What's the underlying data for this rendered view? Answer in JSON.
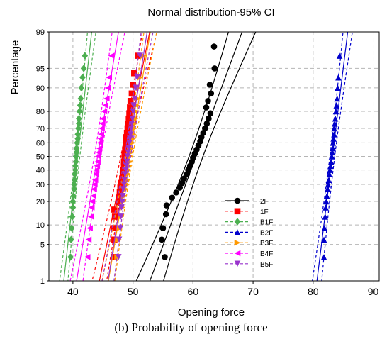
{
  "chart_data": {
    "type": "scatter",
    "title": "Normal distribution-95% CI",
    "xlabel": "Opening force",
    "ylabel": "Percentage",
    "y_scale": "normal-probability",
    "xlim": [
      36,
      91
    ],
    "x_ticks": [
      "40",
      "50",
      "60",
      "70",
      "80",
      "90"
    ],
    "x_tick_values": [
      40,
      50,
      60,
      70,
      80,
      90
    ],
    "y_ticks": [
      "1",
      "5",
      "10",
      "20",
      "30",
      "40",
      "50",
      "60",
      "70",
      "80",
      "90",
      "95",
      "99"
    ],
    "y_tick_values": [
      1,
      5,
      10,
      20,
      30,
      40,
      50,
      60,
      70,
      80,
      90,
      95,
      99
    ],
    "grid": true,
    "legend_position": "lower-middle",
    "series": [
      {
        "name": "2F",
        "color": "#000000",
        "marker": "circle",
        "fit": {
          "mean": 60.5,
          "sd": 3.3
        },
        "points": [
          [
            55.3,
            3
          ],
          [
            54.8,
            6
          ],
          [
            55.0,
            9
          ],
          [
            55.5,
            14
          ],
          [
            55.6,
            18
          ],
          [
            56.5,
            22
          ],
          [
            57.2,
            25
          ],
          [
            57.8,
            28
          ],
          [
            58.2,
            31
          ],
          [
            58.5,
            34
          ],
          [
            59.0,
            37
          ],
          [
            59.2,
            40
          ],
          [
            59.5,
            43
          ],
          [
            59.8,
            46
          ],
          [
            60.0,
            49
          ],
          [
            60.3,
            52
          ],
          [
            60.6,
            55
          ],
          [
            60.9,
            58
          ],
          [
            61.2,
            61
          ],
          [
            61.4,
            64
          ],
          [
            61.7,
            67
          ],
          [
            62.0,
            70
          ],
          [
            62.3,
            73
          ],
          [
            62.6,
            76
          ],
          [
            62.9,
            79
          ],
          [
            62.2,
            82
          ],
          [
            62.5,
            85
          ],
          [
            63.0,
            88
          ],
          [
            62.8,
            91
          ],
          [
            63.6,
            95
          ],
          [
            63.5,
            98
          ]
        ]
      },
      {
        "name": "1F",
        "color": "#ff0000",
        "marker": "square",
        "fit": {
          "mean": 48.6,
          "sd": 1.8
        },
        "points": [
          [
            46.8,
            3
          ],
          [
            46.9,
            6
          ],
          [
            46.8,
            9
          ],
          [
            47.0,
            13
          ],
          [
            46.9,
            16
          ],
          [
            47.6,
            19
          ],
          [
            47.7,
            22
          ],
          [
            47.8,
            25
          ],
          [
            47.9,
            28
          ],
          [
            48.0,
            31
          ],
          [
            48.2,
            34
          ],
          [
            48.3,
            37
          ],
          [
            48.4,
            40
          ],
          [
            48.5,
            43
          ],
          [
            48.5,
            46
          ],
          [
            48.6,
            49
          ],
          [
            48.6,
            52
          ],
          [
            48.7,
            55
          ],
          [
            48.8,
            58
          ],
          [
            48.9,
            61
          ],
          [
            48.9,
            64
          ],
          [
            49.0,
            67
          ],
          [
            49.1,
            70
          ],
          [
            49.2,
            73
          ],
          [
            49.3,
            76
          ],
          [
            49.4,
            79
          ],
          [
            49.5,
            82
          ],
          [
            49.6,
            85
          ],
          [
            49.8,
            88
          ],
          [
            50.0,
            91
          ],
          [
            50.2,
            94
          ],
          [
            50.8,
            97
          ]
        ]
      },
      {
        "name": "B1F",
        "color": "#4caf50",
        "marker": "diamond",
        "fit": {
          "mean": 40.8,
          "sd": 1.0
        },
        "points": [
          [
            39.6,
            3
          ],
          [
            39.7,
            6
          ],
          [
            39.8,
            9
          ],
          [
            39.9,
            13
          ],
          [
            40.0,
            17
          ],
          [
            40.0,
            20
          ],
          [
            40.1,
            23
          ],
          [
            40.2,
            27
          ],
          [
            40.2,
            30
          ],
          [
            40.3,
            33
          ],
          [
            40.3,
            37
          ],
          [
            40.4,
            40
          ],
          [
            40.4,
            43
          ],
          [
            40.5,
            46
          ],
          [
            40.5,
            50
          ],
          [
            40.6,
            53
          ],
          [
            40.6,
            56
          ],
          [
            40.7,
            60
          ],
          [
            40.8,
            63
          ],
          [
            40.8,
            66
          ],
          [
            40.9,
            70
          ],
          [
            41.0,
            73
          ],
          [
            41.0,
            76
          ],
          [
            41.1,
            80
          ],
          [
            41.2,
            83
          ],
          [
            41.3,
            86
          ],
          [
            41.4,
            90
          ],
          [
            41.6,
            93
          ],
          [
            41.8,
            95
          ],
          [
            42.0,
            97
          ]
        ]
      },
      {
        "name": "B2F",
        "color": "#0000cc",
        "marker": "triangle-up",
        "fit": {
          "mean": 83.2,
          "sd": 1.1
        },
        "points": [
          [
            81.8,
            3
          ],
          [
            81.8,
            6
          ],
          [
            81.9,
            9
          ],
          [
            82.0,
            13
          ],
          [
            82.1,
            17
          ],
          [
            82.2,
            20
          ],
          [
            82.3,
            23
          ],
          [
            82.4,
            27
          ],
          [
            82.5,
            30
          ],
          [
            82.6,
            33
          ],
          [
            82.7,
            37
          ],
          [
            82.8,
            40
          ],
          [
            82.9,
            43
          ],
          [
            83.0,
            46
          ],
          [
            83.1,
            50
          ],
          [
            83.2,
            53
          ],
          [
            83.3,
            56
          ],
          [
            83.3,
            60
          ],
          [
            83.4,
            63
          ],
          [
            83.5,
            66
          ],
          [
            83.5,
            70
          ],
          [
            83.6,
            73
          ],
          [
            83.7,
            76
          ],
          [
            83.8,
            80
          ],
          [
            83.9,
            83
          ],
          [
            84.0,
            86
          ],
          [
            84.1,
            90
          ],
          [
            84.2,
            93
          ],
          [
            84.4,
            97
          ]
        ]
      },
      {
        "name": "B3F",
        "color": "#ff9900",
        "marker": "triangle-right",
        "fit": {
          "mean": 49.4,
          "sd": 1.5
        },
        "points": [
          [
            47.4,
            3
          ],
          [
            47.6,
            6
          ],
          [
            47.8,
            9
          ],
          [
            48.0,
            13
          ],
          [
            48.2,
            17
          ],
          [
            48.4,
            20
          ],
          [
            48.6,
            23
          ],
          [
            48.8,
            27
          ],
          [
            49.0,
            30
          ],
          [
            49.1,
            33
          ],
          [
            49.2,
            37
          ],
          [
            49.3,
            40
          ],
          [
            49.4,
            43
          ],
          [
            49.5,
            46
          ],
          [
            49.6,
            50
          ],
          [
            49.7,
            53
          ],
          [
            49.8,
            56
          ],
          [
            49.9,
            60
          ],
          [
            50.0,
            63
          ],
          [
            50.1,
            66
          ],
          [
            50.2,
            70
          ],
          [
            50.3,
            73
          ],
          [
            50.4,
            76
          ],
          [
            50.5,
            80
          ],
          [
            50.6,
            83
          ],
          [
            50.8,
            86
          ],
          [
            51.0,
            90
          ],
          [
            51.2,
            93
          ],
          [
            51.8,
            97
          ]
        ]
      },
      {
        "name": "B4F",
        "color": "#ff00ff",
        "marker": "triangle-left",
        "fit": {
          "mean": 44.1,
          "sd": 1.5
        },
        "points": [
          [
            42.4,
            3
          ],
          [
            42.6,
            6
          ],
          [
            42.8,
            9
          ],
          [
            43.0,
            13
          ],
          [
            43.1,
            17
          ],
          [
            43.2,
            20
          ],
          [
            43.4,
            23
          ],
          [
            43.5,
            27
          ],
          [
            43.6,
            30
          ],
          [
            43.7,
            33
          ],
          [
            43.8,
            37
          ],
          [
            43.9,
            40
          ],
          [
            44.0,
            43
          ],
          [
            44.1,
            46
          ],
          [
            44.2,
            50
          ],
          [
            44.3,
            53
          ],
          [
            44.4,
            56
          ],
          [
            44.5,
            60
          ],
          [
            44.6,
            63
          ],
          [
            44.7,
            66
          ],
          [
            44.8,
            70
          ],
          [
            44.9,
            73
          ],
          [
            45.0,
            76
          ],
          [
            45.2,
            80
          ],
          [
            45.4,
            83
          ],
          [
            45.6,
            86
          ],
          [
            45.8,
            90
          ],
          [
            46.0,
            93
          ],
          [
            46.4,
            97
          ]
        ]
      },
      {
        "name": "B5F",
        "color": "#9933cc",
        "marker": "triangle-down",
        "fit": {
          "mean": 49.1,
          "sd": 1.4
        },
        "points": [
          [
            47.6,
            3
          ],
          [
            47.7,
            6
          ],
          [
            47.9,
            9
          ],
          [
            48.0,
            13
          ],
          [
            48.1,
            17
          ],
          [
            48.2,
            20
          ],
          [
            48.3,
            23
          ],
          [
            48.4,
            27
          ],
          [
            48.5,
            30
          ],
          [
            48.6,
            33
          ],
          [
            48.7,
            37
          ],
          [
            48.8,
            40
          ],
          [
            48.9,
            43
          ],
          [
            49.0,
            46
          ],
          [
            49.1,
            50
          ],
          [
            49.2,
            53
          ],
          [
            49.3,
            56
          ],
          [
            49.4,
            60
          ],
          [
            49.5,
            63
          ],
          [
            49.6,
            66
          ],
          [
            49.7,
            70
          ],
          [
            49.8,
            73
          ],
          [
            49.9,
            76
          ],
          [
            50.0,
            80
          ],
          [
            50.1,
            83
          ],
          [
            50.3,
            86
          ],
          [
            50.5,
            90
          ],
          [
            50.7,
            93
          ],
          [
            51.2,
            97
          ]
        ]
      }
    ]
  },
  "caption": "(b) Probability of opening force"
}
